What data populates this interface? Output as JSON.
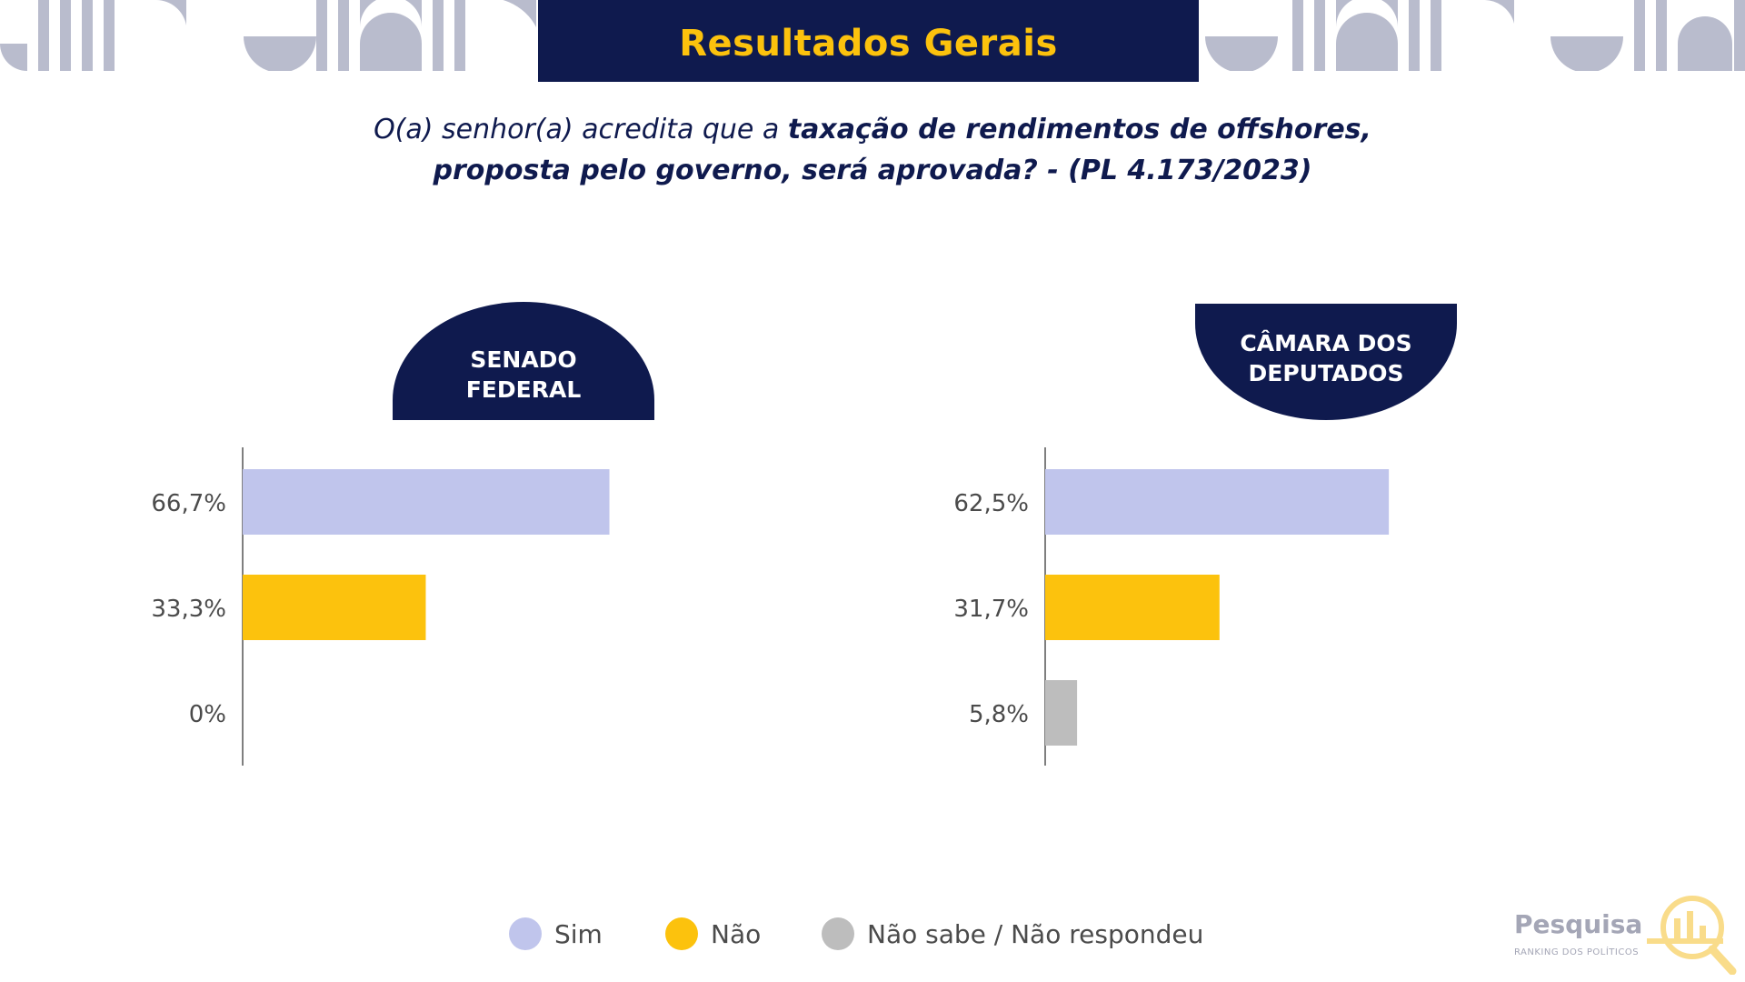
{
  "title": "Resultados Gerais",
  "question": {
    "part1": "O(a) senhor(a) acredita que a ",
    "bold1": "taxação de rendimentos de offshores,",
    "line2": "proposta pelo governo, será aprovada? - (PL 4.173/2023)"
  },
  "chart_data": [
    {
      "type": "bar",
      "orientation": "horizontal",
      "title": "SENADO FEDERAL",
      "title_lines": [
        "SENADO",
        "FEDERAL"
      ],
      "categories": [
        "Sim",
        "Não",
        "Não sabe / Não respondeu"
      ],
      "values": [
        66.7,
        33.3,
        0
      ],
      "value_labels": [
        "66,7%",
        "33,3%",
        "0%"
      ],
      "colors": [
        "#c0c5ec",
        "#fcc20d",
        "#bdbdbd"
      ],
      "xlim": [
        0,
        100
      ]
    },
    {
      "type": "bar",
      "orientation": "horizontal",
      "title": "CÂMARA DOS DEPUTADOS",
      "title_lines": [
        "CÂMARA DOS",
        "DEPUTADOS"
      ],
      "categories": [
        "Sim",
        "Não",
        "Não sabe / Não respondeu"
      ],
      "values": [
        62.5,
        31.7,
        5.8
      ],
      "value_labels": [
        "62,5%",
        "31,7%",
        "5,8%"
      ],
      "colors": [
        "#c0c5ec",
        "#fcc20d",
        "#bdbdbd"
      ],
      "xlim": [
        0,
        100
      ]
    }
  ],
  "legend": {
    "placement": "bottom",
    "items": [
      {
        "label": "Sim",
        "color": "#c0c5ec"
      },
      {
        "label": "Não",
        "color": "#fcc20d"
      },
      {
        "label": "Não sabe / Não respondeu",
        "color": "#bdbdbd"
      }
    ]
  },
  "colors": {
    "navy": "#0f1a4e",
    "yellow": "#fcc20d",
    "deco": "#b9bccd",
    "axis": "#555555",
    "label": "#4b4b4b"
  },
  "logo": {
    "name": "Pesquisa",
    "sub": "RANKING DOS POLÍTICOS",
    "icon": "magnifier-bar-icon"
  }
}
